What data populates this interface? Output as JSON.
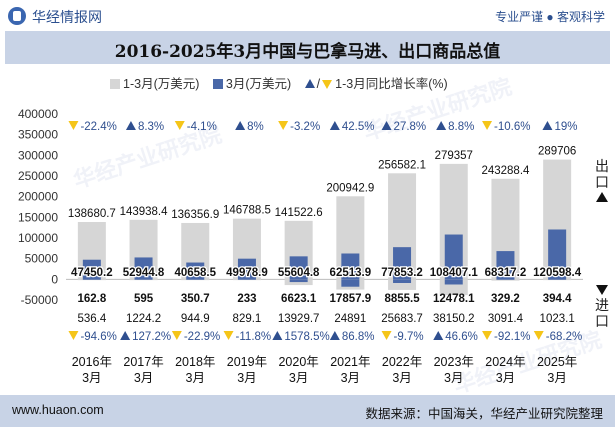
{
  "header": {
    "brand": "华经情报网",
    "slogan": "专业严谨 ● 客观科学"
  },
  "title": "2016-2025年3月中国与巴拿马进、出口商品总值",
  "legend": {
    "total": "1-3月(万美元)",
    "march": "3月(万美元)",
    "growth": "1-3月同比增长率(%)"
  },
  "side_labels": {
    "export": "出口",
    "import": "进口"
  },
  "watermark": "华经产业研究院",
  "footer": {
    "url": "www.huaon.com",
    "source": "数据来源：中国海关，华经产业研究院整理"
  },
  "chart_data": {
    "type": "bar",
    "categories": [
      "2016年\n3月",
      "2017年\n3月",
      "2018年\n3月",
      "2019年\n3月",
      "2020年\n3月",
      "2021年\n3月",
      "2022年\n3月",
      "2023年\n3月",
      "2024年\n3月",
      "2025年\n3月"
    ],
    "ylim": [
      -50000,
      400000
    ],
    "yticks": [
      400000,
      350000,
      300000,
      250000,
      200000,
      150000,
      100000,
      50000,
      0,
      -50000
    ],
    "export": {
      "total_1_3": [
        138680.7,
        143938.4,
        136356.9,
        146788.5,
        141522.6,
        200942.9,
        256582.1,
        279357,
        243288.4,
        289706
      ],
      "total_1_3_labels": [
        "138680.7",
        "143938.4",
        "136356.9",
        "146788.5",
        "141522.6",
        "200942.9",
        "256582.1",
        "279357",
        "243288.4",
        "289706"
      ],
      "march": [
        47450.2,
        52944.8,
        40658.5,
        49978.9,
        55604.8,
        62513.9,
        77853.2,
        108407.1,
        68317.2,
        120598.4
      ],
      "march_labels": [
        "47450.2",
        "52944.8",
        "40658.5",
        "49978.9",
        "55604.8",
        "62513.9",
        "77853.2",
        "108407.1",
        "68317.2",
        "120598.4"
      ],
      "growth_labels": [
        "-22.4%",
        "8.3%",
        "-4.1%",
        "8%",
        "-3.2%",
        "42.5%",
        "27.8%",
        "8.8%",
        "-10.6%",
        "19%"
      ],
      "growth_dir": [
        "down",
        "up",
        "down",
        "up",
        "down",
        "up",
        "up",
        "up",
        "down",
        "up"
      ]
    },
    "import": {
      "total_1_3": [
        536.4,
        1224.2,
        944.9,
        829.1,
        13929.7,
        24891,
        25683.7,
        38150.2,
        3091.4,
        1023.1
      ],
      "total_1_3_labels": [
        "536.4",
        "1224.2",
        "944.9",
        "829.1",
        "13929.7",
        "24891",
        "25683.7",
        "38150.2",
        "3091.4",
        "1023.1"
      ],
      "march": [
        162.8,
        595,
        350.7,
        233,
        6623.1,
        17857.9,
        8855.5,
        12478.1,
        329.2,
        394.4
      ],
      "march_labels": [
        "162.8",
        "595",
        "350.7",
        "233",
        "6623.1",
        "17857.9",
        "8855.5",
        "12478.1",
        "329.2",
        "394.4"
      ],
      "growth_labels": [
        "-94.6%",
        "127.2%",
        "-22.9%",
        "-11.8%",
        "1578.5%",
        "86.8%",
        "-9.7%",
        "46.6%",
        "-92.1%",
        "-68.2%"
      ],
      "growth_dir": [
        "down",
        "up",
        "down",
        "down",
        "up",
        "up",
        "down",
        "up",
        "down",
        "down"
      ]
    },
    "colors": {
      "total": "#d6d6d6",
      "march": "#4a68a8",
      "up": "#2f4f8f",
      "down": "#f5c518",
      "growth_text": "#2f4f8f"
    }
  }
}
